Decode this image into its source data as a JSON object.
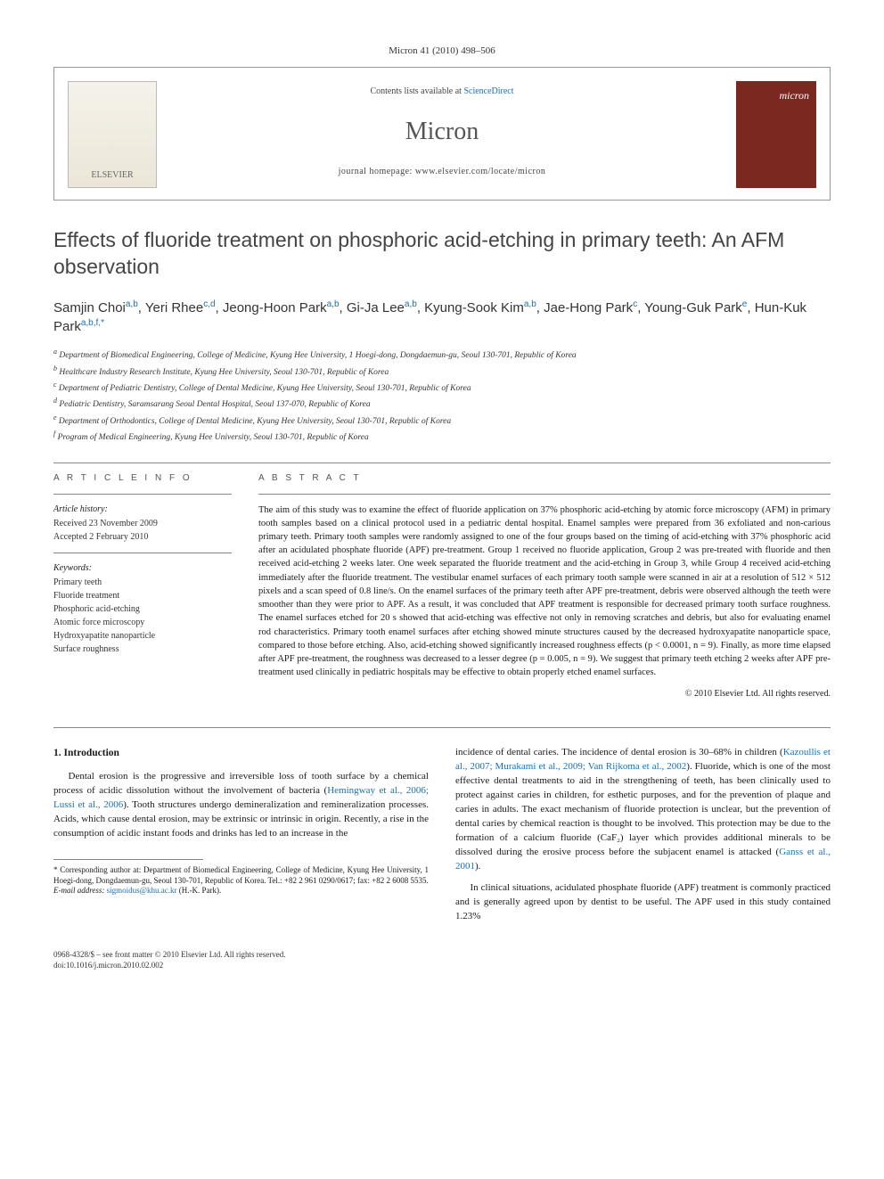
{
  "journal_ref": "Micron 41 (2010) 498–506",
  "header": {
    "contents_list": "Contents lists available at ",
    "sciencedirect": "ScienceDirect",
    "journal_name": "Micron",
    "homepage": "journal homepage: www.elsevier.com/locate/micron",
    "publisher": "ELSEVIER",
    "cover_label": "micron"
  },
  "title": "Effects of fluoride treatment on phosphoric acid-etching in primary teeth: An AFM observation",
  "authors_html": [
    {
      "name": "Samjin Choi",
      "aff": "a,b"
    },
    {
      "name": "Yeri Rhee",
      "aff": "c,d"
    },
    {
      "name": "Jeong-Hoon Park",
      "aff": "a,b"
    },
    {
      "name": "Gi-Ja Lee",
      "aff": "a,b"
    },
    {
      "name": "Kyung-Sook Kim",
      "aff": "a,b"
    },
    {
      "name": "Jae-Hong Park",
      "aff": "c"
    },
    {
      "name": "Young-Guk Park",
      "aff": "e"
    },
    {
      "name": "Hun-Kuk Park",
      "aff": "a,b,f,*"
    }
  ],
  "affiliations": [
    {
      "key": "a",
      "text": "Department of Biomedical Engineering, College of Medicine, Kyung Hee University, 1 Hoegi-dong, Dongdaemun-gu, Seoul 130-701, Republic of Korea"
    },
    {
      "key": "b",
      "text": "Healthcare Industry Research Institute, Kyung Hee University, Seoul 130-701, Republic of Korea"
    },
    {
      "key": "c",
      "text": "Department of Pediatric Dentistry, College of Dental Medicine, Kyung Hee University, Seoul 130-701, Republic of Korea"
    },
    {
      "key": "d",
      "text": "Pediatric Dentistry, Saramsarang Seoul Dental Hospital, Seoul 137-070, Republic of Korea"
    },
    {
      "key": "e",
      "text": "Department of Orthodontics, College of Dental Medicine, Kyung Hee University, Seoul 130-701, Republic of Korea"
    },
    {
      "key": "f",
      "text": "Program of Medical Engineering, Kyung Hee University, Seoul 130-701, Republic of Korea"
    }
  ],
  "article_info": {
    "heading": "A R T I C L E   I N F O",
    "history_label": "Article history:",
    "received": "Received 23 November 2009",
    "accepted": "Accepted 2 February 2010",
    "keywords_label": "Keywords:",
    "keywords": [
      "Primary teeth",
      "Fluoride treatment",
      "Phosphoric acid-etching",
      "Atomic force microscopy",
      "Hydroxyapatite nanoparticle",
      "Surface roughness"
    ]
  },
  "abstract": {
    "heading": "A B S T R A C T",
    "text": "The aim of this study was to examine the effect of fluoride application on 37% phosphoric acid-etching by atomic force microscopy (AFM) in primary tooth samples based on a clinical protocol used in a pediatric dental hospital. Enamel samples were prepared from 36 exfoliated and non-carious primary teeth. Primary tooth samples were randomly assigned to one of the four groups based on the timing of acid-etching with 37% phosphoric acid after an acidulated phosphate fluoride (APF) pre-treatment. Group 1 received no fluoride application, Group 2 was pre-treated with fluoride and then received acid-etching 2 weeks later. One week separated the fluoride treatment and the acid-etching in Group 3, while Group 4 received acid-etching immediately after the fluoride treatment. The vestibular enamel surfaces of each primary tooth sample were scanned in air at a resolution of 512 × 512 pixels and a scan speed of 0.8 line/s. On the enamel surfaces of the primary teeth after APF pre-treatment, debris were observed although the teeth were smoother than they were prior to APF. As a result, it was concluded that APF treatment is responsible for decreased primary tooth surface roughness. The enamel surfaces etched for 20 s showed that acid-etching was effective not only in removing scratches and debris, but also for evaluating enamel rod characteristics. Primary tooth enamel surfaces after etching showed minute structures caused by the decreased hydroxyapatite nanoparticle space, compared to those before etching. Also, acid-etching showed significantly increased roughness effects (p < 0.0001, n = 9). Finally, as more time elapsed after APF pre-treatment, the roughness was decreased to a lesser degree (p = 0.005, n = 9). We suggest that primary teeth etching 2 weeks after APF pre-treatment used clinically in pediatric hospitals may be effective to obtain properly etched enamel surfaces.",
    "copyright": "© 2010 Elsevier Ltd. All rights reserved."
  },
  "body": {
    "section_heading": "1. Introduction",
    "col1_p1": "Dental erosion is the progressive and irreversible loss of tooth surface by a chemical process of acidic dissolution without the involvement of bacteria (",
    "col1_cite1": "Hemingway et al., 2006; Lussi et al., 2006",
    "col1_p1b": "). Tooth structures undergo demineralization and remineralization processes. Acids, which cause dental erosion, may be extrinsic or intrinsic in origin. Recently, a rise in the consumption of acidic instant foods and drinks has led to an increase in the",
    "col2_p1a": "incidence of dental caries. The incidence of dental erosion is 30–68% in children (",
    "col2_cite1": "Kazoullis et al., 2007; Murakami et al., 2009; Van Rijkoma et al., 2002",
    "col2_p1b": "). Fluoride, which is one of the most effective dental treatments to aid in the strengthening of teeth, has been clinically used to protect against caries in children, for esthetic purposes, and for the prevention of plaque and caries in adults. The exact mechanism of fluoride protection is unclear, but the prevention of dental caries by chemical reaction is thought to be involved. This protection may be due to the formation of a calcium fluoride (CaF₂) layer which provides additional minerals to be dissolved during the erosive process before the subjacent enamel is attacked (",
    "col2_cite2": "Ganss et al., 2001",
    "col2_p1c": ").",
    "col2_p2": "In clinical situations, acidulated phosphate fluoride (APF) treatment is commonly practiced and is generally agreed upon by dentist to be useful. The APF used in this study contained 1.23%"
  },
  "footnote": {
    "corr": "* Corresponding author at: Department of Biomedical Engineering, College of Medicine, Kyung Hee University, 1 Hoegi-dong, Dongdaemun-gu, Seoul 130-701, Republic of Korea. Tel.: +82 2 961 0290/0617; fax: +82 2 6008 5535.",
    "email_label": "E-mail address: ",
    "email": "sigmoidus@khu.ac.kr",
    "email_suffix": " (H.-K. Park)."
  },
  "footer": {
    "left_line1": "0968-4328/$ – see front matter © 2010 Elsevier Ltd. All rights reserved.",
    "left_line2": "doi:10.1016/j.micron.2010.02.002"
  },
  "colors": {
    "link": "#1a6fb5",
    "cover_bg": "#7a2820",
    "rule": "#888"
  }
}
